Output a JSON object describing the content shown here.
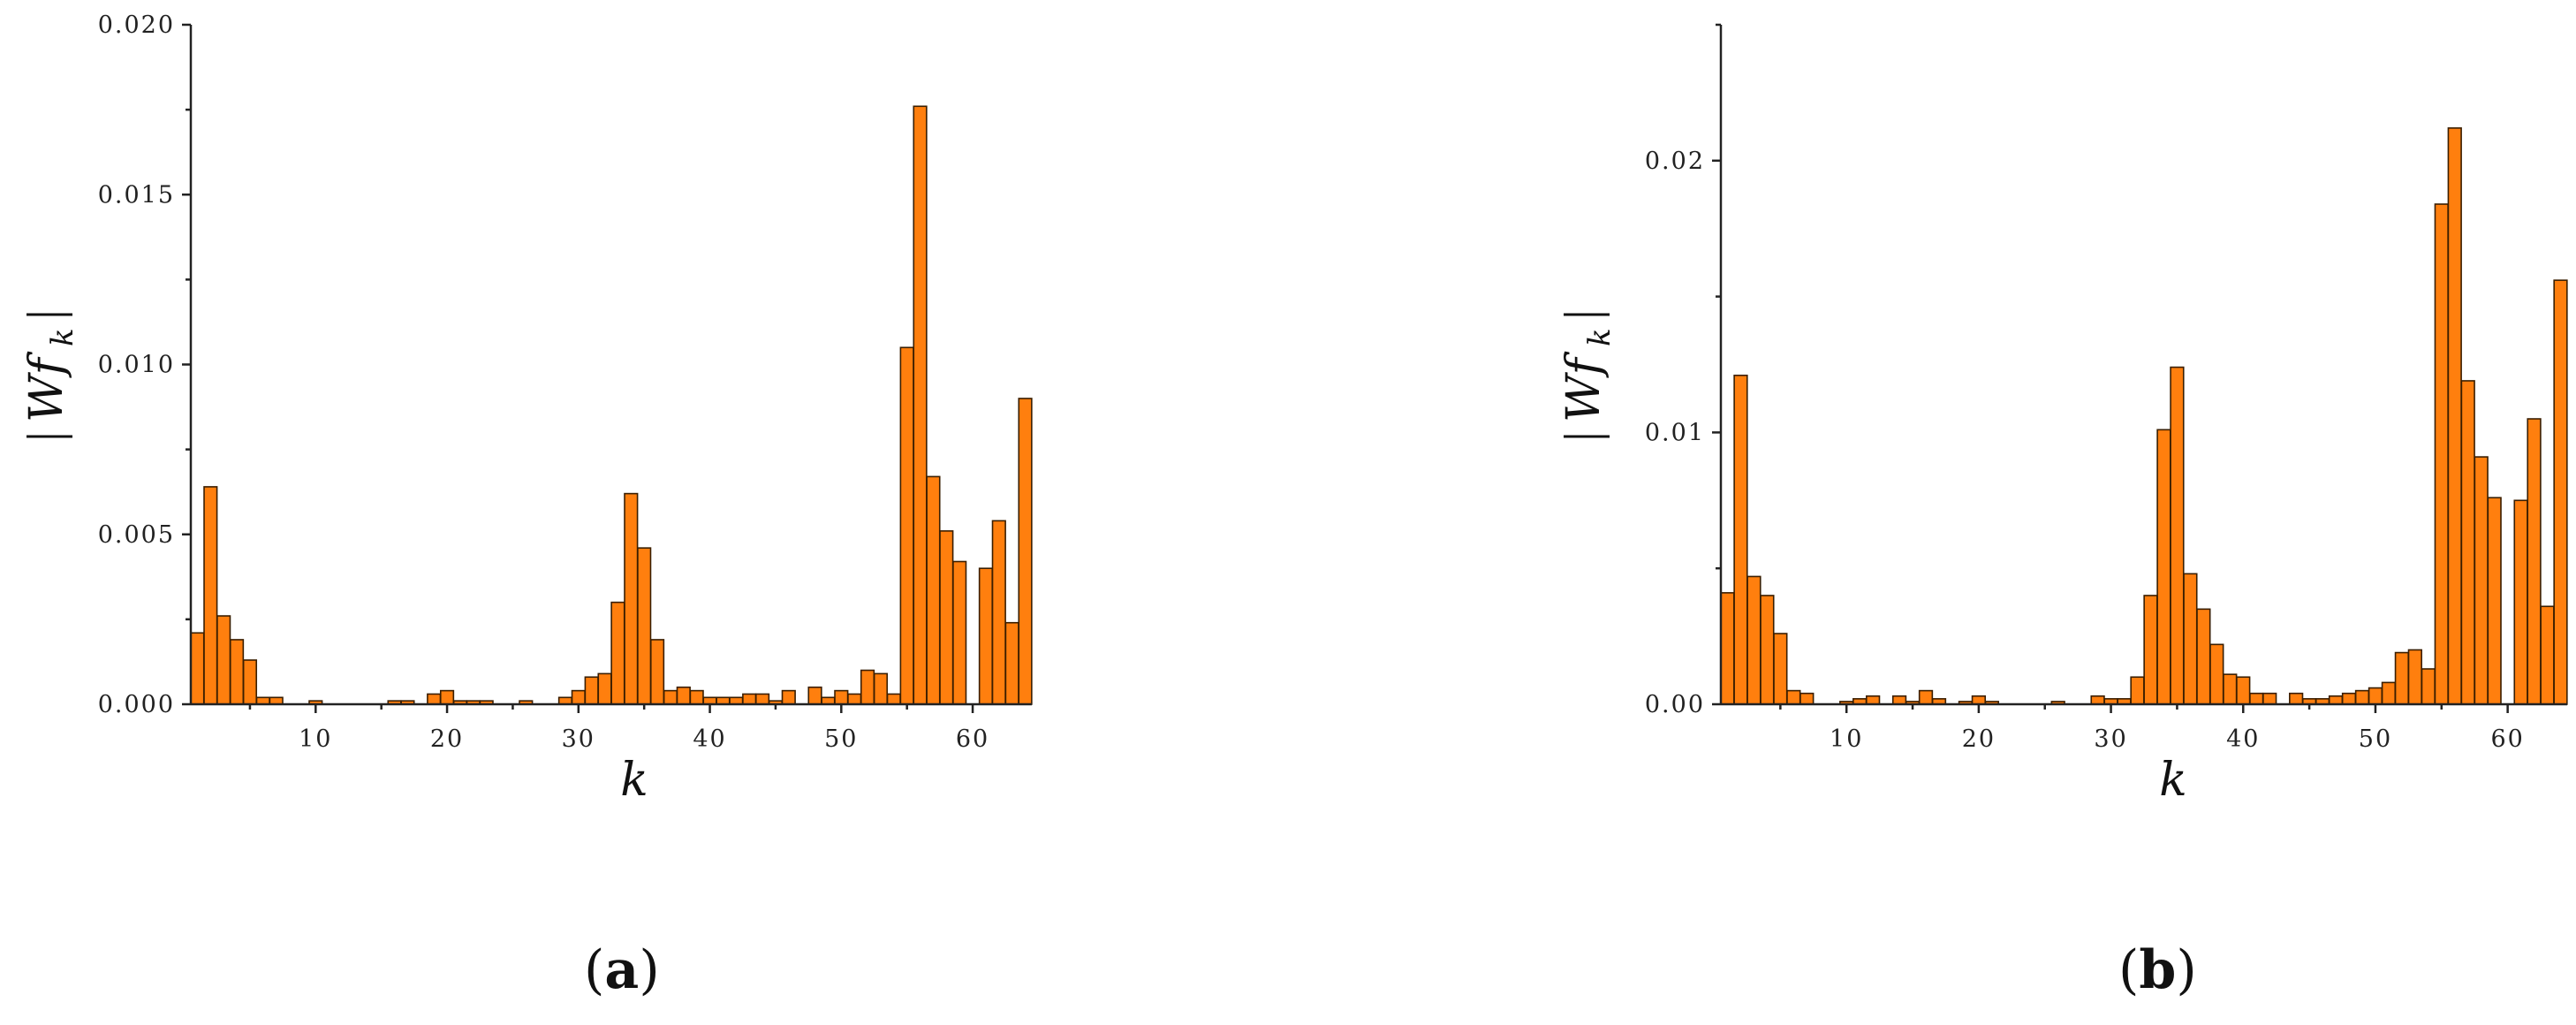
{
  "chart_data": [
    {
      "type": "bar",
      "panel_label": {
        "open": "(",
        "letter": "a",
        "close": ")"
      },
      "xlabel": "k",
      "ylabel": {
        "prefix": "Wf",
        "sub": "k"
      },
      "xlim": [
        0.5,
        64.5
      ],
      "ylim": [
        0,
        0.02
      ],
      "xticks": [
        10,
        20,
        30,
        40,
        50,
        60
      ],
      "xtick_labels": [
        "10",
        "20",
        "30",
        "40",
        "50",
        "60"
      ],
      "yticks": [
        0,
        0.005,
        0.01,
        0.015,
        0.02
      ],
      "ytick_labels": [
        "0.000",
        "0.005",
        "0.010",
        "0.015",
        "0.020"
      ],
      "color": "#FF7F0E",
      "x": [
        1,
        2,
        3,
        4,
        5,
        6,
        7,
        8,
        9,
        10,
        11,
        12,
        13,
        14,
        15,
        16,
        17,
        18,
        19,
        20,
        21,
        22,
        23,
        24,
        25,
        26,
        27,
        28,
        29,
        30,
        31,
        32,
        33,
        34,
        35,
        36,
        37,
        38,
        39,
        40,
        41,
        42,
        43,
        44,
        45,
        46,
        47,
        48,
        49,
        50,
        51,
        52,
        53,
        54,
        55,
        56,
        57,
        58,
        59,
        60,
        61,
        62,
        63,
        64
      ],
      "values": [
        0.0021,
        0.0064,
        0.0026,
        0.0019,
        0.0013,
        0.0002,
        0.0002,
        0.0,
        0.0,
        0.0001,
        0.0,
        0.0,
        0.0,
        0.0,
        0.0,
        0.0001,
        0.0001,
        0.0,
        0.0003,
        0.0004,
        0.0001,
        0.0001,
        0.0001,
        0.0,
        0.0,
        0.0001,
        0.0,
        0.0,
        0.0002,
        0.0004,
        0.0008,
        0.0009,
        0.003,
        0.0062,
        0.0046,
        0.0019,
        0.0004,
        0.0005,
        0.0004,
        0.0002,
        0.0002,
        0.0002,
        0.0003,
        0.0003,
        0.0001,
        0.0004,
        0.0,
        0.0005,
        0.0002,
        0.0004,
        0.0003,
        0.001,
        0.0009,
        0.0003,
        0.0105,
        0.0176,
        0.0067,
        0.0051,
        0.0042,
        0.0,
        0.004,
        0.0054,
        0.0024,
        0.009
      ]
    },
    {
      "type": "bar",
      "panel_label": {
        "open": "(",
        "letter": "b",
        "close": ")"
      },
      "xlabel": "k",
      "ylabel": {
        "prefix": "Wf",
        "sub": "k"
      },
      "xlim": [
        0.5,
        64.5
      ],
      "ylim": [
        0,
        0.025
      ],
      "xticks": [
        10,
        20,
        30,
        40,
        50,
        60
      ],
      "xtick_labels": [
        "10",
        "20",
        "30",
        "40",
        "50",
        "60"
      ],
      "yticks": [
        0,
        0.01,
        0.02
      ],
      "ytick_labels": [
        "0.00",
        "0.01",
        "0.02"
      ],
      "color": "#FF7F0E",
      "x": [
        1,
        2,
        3,
        4,
        5,
        6,
        7,
        8,
        9,
        10,
        11,
        12,
        13,
        14,
        15,
        16,
        17,
        18,
        19,
        20,
        21,
        22,
        23,
        24,
        25,
        26,
        27,
        28,
        29,
        30,
        31,
        32,
        33,
        34,
        35,
        36,
        37,
        38,
        39,
        40,
        41,
        42,
        43,
        44,
        45,
        46,
        47,
        48,
        49,
        50,
        51,
        52,
        53,
        54,
        55,
        56,
        57,
        58,
        59,
        60,
        61,
        62,
        63,
        64
      ],
      "values": [
        0.0041,
        0.0121,
        0.0047,
        0.004,
        0.0026,
        0.0005,
        0.0004,
        0.0,
        0.0,
        0.0001,
        0.0002,
        0.0003,
        0.0,
        0.0003,
        0.0001,
        0.0005,
        0.0002,
        0.0,
        0.0001,
        0.0003,
        0.0001,
        0.0,
        0.0,
        0.0,
        0.0,
        0.0001,
        0.0,
        0.0,
        0.0003,
        0.0002,
        0.0002,
        0.001,
        0.004,
        0.0101,
        0.0124,
        0.0048,
        0.0035,
        0.0022,
        0.0011,
        0.001,
        0.0004,
        0.0004,
        0.0,
        0.0004,
        0.0002,
        0.0002,
        0.0003,
        0.0004,
        0.0005,
        0.0006,
        0.0008,
        0.0019,
        0.002,
        0.0013,
        0.0184,
        0.0212,
        0.0119,
        0.0091,
        0.0076,
        0.0,
        0.0075,
        0.0105,
        0.0036,
        0.0156
      ]
    }
  ]
}
